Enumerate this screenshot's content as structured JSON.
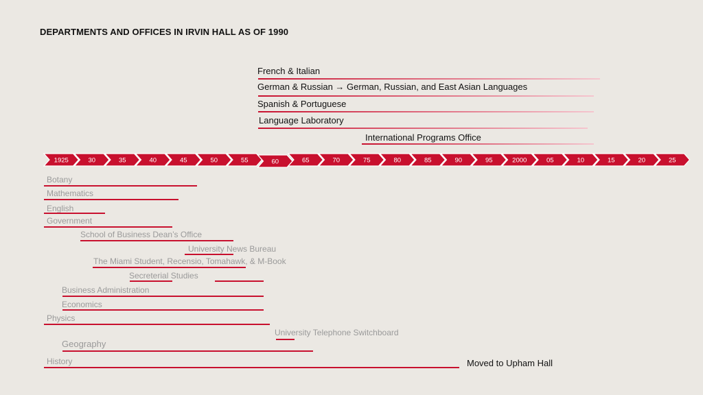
{
  "title": "DEPARTMENTS AND OFFICES IN IRVIN HALL AS OF 1990",
  "timeline": {
    "ticks": [
      "1925",
      "30",
      "35",
      "40",
      "45",
      "50",
      "55",
      "60",
      "65",
      "70",
      "75",
      "80",
      "85",
      "90",
      "95",
      "2000",
      "05",
      "10",
      "15",
      "20",
      "25"
    ],
    "tick_years": [
      1925,
      1930,
      1935,
      1940,
      1945,
      1950,
      1955,
      1960,
      1965,
      1970,
      1975,
      1980,
      1985,
      1990,
      1995,
      2000,
      2005,
      2010,
      2015,
      2020,
      2025
    ],
    "arrow_color": "#c8102e"
  },
  "upper_departments": [
    {
      "label": "French & Italian",
      "start": 1960,
      "end": 2016
    },
    {
      "label": "German & Russian → German, Russian, and East Asian Languages",
      "start": 1960,
      "end": 2015
    },
    {
      "label": "Spanish & Portuguese",
      "start": 1960,
      "end": 2015
    },
    {
      "label": "Language Laboratory",
      "start": 1960,
      "end": 2014
    },
    {
      "label": "International Programs Office",
      "start": 1977,
      "end": 2015
    }
  ],
  "lower_departments": [
    {
      "label": "Botany",
      "start": 1925,
      "end": 1950
    },
    {
      "label": "Mathematics",
      "start": 1925,
      "end": 1947
    },
    {
      "label": "English",
      "start": 1925,
      "end": 1935
    },
    {
      "label": "Government",
      "start": 1925,
      "end": 1946
    },
    {
      "label": "School of Business Dean’s Office",
      "start": 1931,
      "end": 1956
    },
    {
      "label": "University News Bureau",
      "start": 1948,
      "end": 1956
    },
    {
      "label": "The Miami Student, Recensio, Tomahawk, & M-Book",
      "start": 1933,
      "end": 1958
    },
    {
      "label": "Secreterial Studies",
      "start": 1939,
      "end": 1946,
      "extra_start": 1953,
      "extra_end": 1961
    },
    {
      "label": "Business Administration",
      "start": 1928,
      "end": 1961
    },
    {
      "label": "Economics",
      "start": 1928,
      "end": 1961
    },
    {
      "label": "Physics",
      "start": 1925,
      "end": 1962
    },
    {
      "label": "University Telephone Switchboard",
      "start": 1963,
      "end": 1966
    },
    {
      "label": "Geography",
      "start": 1928,
      "end": 1969
    },
    {
      "label": "History",
      "start": 1925,
      "end": 1993
    }
  ],
  "history_note": "Moved to Upham Hall",
  "colors": {
    "upper_bar_start": "#c8102e",
    "upper_bar_end": "#f5c6cf",
    "lower_bar": "#c8102e",
    "lower_label": "#9a9a9a"
  }
}
